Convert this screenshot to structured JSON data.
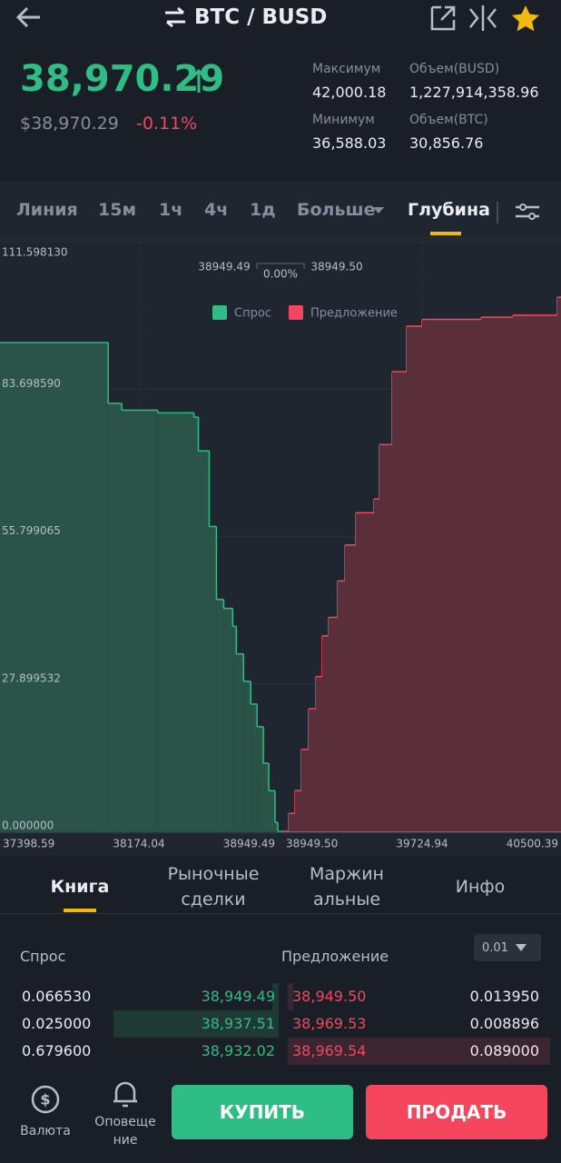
{
  "header": {
    "title": "BTC / BUSD"
  },
  "price": {
    "last": "38,970.29",
    "fiat": "$38,970.29",
    "change": "-0.11%"
  },
  "stats": [
    {
      "label": "Максимум",
      "value": "42,000.18"
    },
    {
      "label": "Объем(BUSD)",
      "value": "1,227,914,358.96"
    },
    {
      "label": "Минимум",
      "value": "36,588.03"
    },
    {
      "label": "Объем(BTC)",
      "value": "30,856.76"
    }
  ],
  "chart_tabs": [
    "Линия",
    "15м",
    "1ч",
    "4ч",
    "1д",
    "Больше",
    "Глубина"
  ],
  "chart_data": {
    "type": "depth",
    "annotations": {
      "bid_price": "38949.49",
      "spread": "0.00%",
      "ask_price": "38949.50"
    },
    "series": [
      {
        "name": "Спрос",
        "color": "#2ebd85",
        "x": [
          37398.59,
          38002.8,
          38078.3,
          38279.7,
          38481.1,
          38506.3,
          38566.7,
          38606.9,
          38647.3,
          38697.6,
          38717.8,
          38757.9,
          38798.3,
          38833.6,
          38868.8,
          38898.9,
          38934.3,
          38949.49
        ],
        "values": [
          92.5,
          81.0,
          79.7,
          79.2,
          78.4,
          72.0,
          57.7,
          43.9,
          42.2,
          38.8,
          33.6,
          28.4,
          24.1,
          19.8,
          12.9,
          7.7,
          1.7,
          0
        ]
      },
      {
        "name": "Предложение",
        "color": "#f6465d",
        "x": [
          38949.5,
          38979.9,
          39015.4,
          39050.9,
          39091.4,
          39132.0,
          39167.4,
          39202.9,
          39253.6,
          39294.1,
          39354.9,
          39456.3,
          39486.7,
          39557.7,
          39638.7,
          39725.0,
          40054.3,
          40231.7,
          40480.0
        ],
        "values": [
          0,
          3.4,
          7.7,
          15.5,
          23.2,
          29.3,
          37.0,
          40.5,
          47.4,
          54.2,
          60.3,
          62.9,
          73.2,
          87.0,
          95.6,
          96.9,
          97.3,
          97.7,
          101.1
        ]
      }
    ],
    "xlim": [
      37398.59,
      40500.39
    ],
    "xticks": [
      37398.59,
      38174.04,
      38949.49,
      {
        "value": 38949.5,
        "label": "38949.50"
      },
      39724.94,
      40500.39
    ],
    "ylim": [
      0,
      111.59813
    ],
    "yticks": [
      {
        "value": 0,
        "label": "0.000000"
      },
      {
        "value": 27.899532,
        "label": "27.899532"
      },
      {
        "value": 55.799065,
        "label": "55.799065"
      },
      {
        "value": 83.69859,
        "label": "83.698590"
      },
      {
        "value": 111.59813,
        "label": "111.598130"
      }
    ],
    "grid": true
  },
  "book_tabs": [
    [
      "Книга"
    ],
    [
      "Рыночные",
      "сделки"
    ],
    [
      "Маржин",
      "альные"
    ],
    [
      "Инфо"
    ]
  ],
  "order_book": {
    "bid_header": "Спрос",
    "ask_header": "Предложение",
    "step": "0.01",
    "rows": [
      [
        "0.066530",
        "38,949.49",
        "38,949.50",
        "0.013950"
      ],
      [
        "0.025000",
        "38,937.51",
        "38,969.53",
        "0.008896"
      ],
      [
        "0.679600",
        "38,932.02",
        "38,969.54",
        "0.089000"
      ]
    ]
  },
  "footer": {
    "currency": [
      "Валюта"
    ],
    "alerts": [
      "Оповеще",
      "ние"
    ],
    "buy": "КУПИТЬ",
    "sell": "ПРОДАТЬ"
  }
}
